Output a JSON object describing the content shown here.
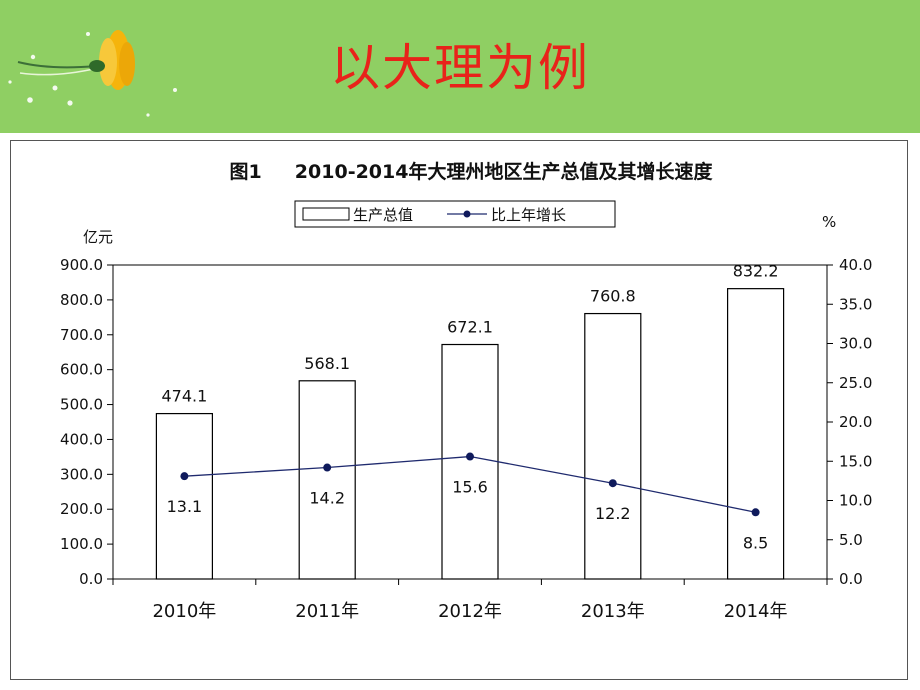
{
  "slide": {
    "title": "以大理为例"
  },
  "chart_data": {
    "type": "bar",
    "title": "图1     2010-2014年大理州地区生产总值及其增长速度",
    "categories": [
      "2010年",
      "2011年",
      "2012年",
      "2013年",
      "2014年"
    ],
    "series": [
      {
        "name": "生产总值",
        "type": "bar",
        "axis": "left",
        "values": [
          474.1,
          568.1,
          672.1,
          760.8,
          832.2
        ]
      },
      {
        "name": "比上年增长",
        "type": "line",
        "axis": "right",
        "values": [
          13.1,
          14.2,
          15.6,
          12.2,
          8.5
        ]
      }
    ],
    "y_left": {
      "unit": "亿元",
      "ylim": [
        0,
        900
      ],
      "ticks": [
        "0.0",
        "100.0",
        "200.0",
        "300.0",
        "400.0",
        "500.0",
        "600.0",
        "700.0",
        "800.0",
        "900.0"
      ]
    },
    "y_right": {
      "unit": "%",
      "ylim": [
        0,
        40
      ],
      "ticks": [
        "0.0",
        "5.0",
        "10.0",
        "15.0",
        "20.0",
        "25.0",
        "30.0",
        "35.0",
        "40.0"
      ]
    },
    "grid": false,
    "legend": "top-center",
    "colors": {
      "bar_fill": "#ffffff",
      "bar_stroke": "#000000",
      "line": "#1f2a6e",
      "marker": "#0f1a5c",
      "title_red": "#e8231a",
      "banner_green": "#8fcf63"
    }
  }
}
